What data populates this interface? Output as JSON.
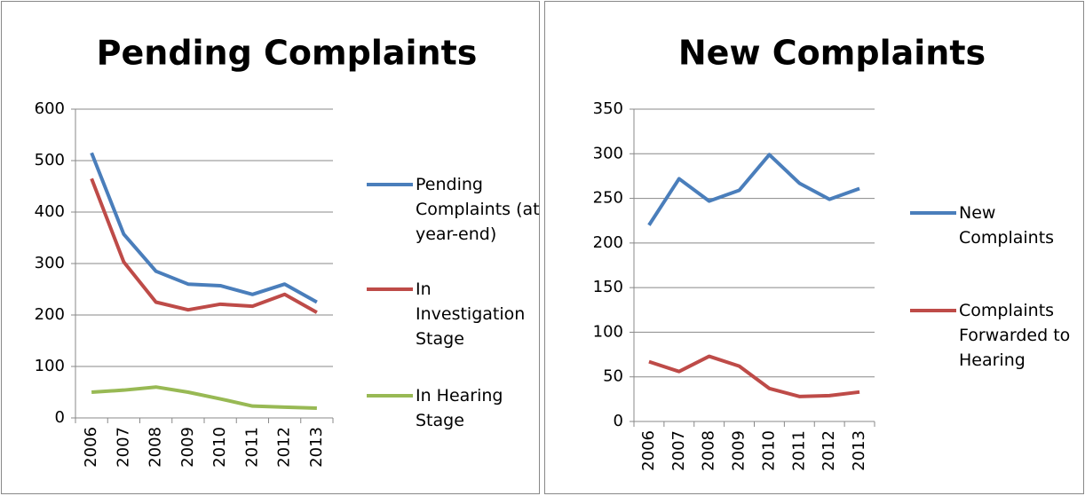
{
  "chart_data": [
    {
      "type": "line",
      "title": "Pending Complaints",
      "categories": [
        "2006",
        "2007",
        "2008",
        "2009",
        "2010",
        "2011",
        "2012",
        "2013"
      ],
      "series": [
        {
          "name": "Pending Complaints (at year-end)",
          "color": "#4a7ebb",
          "values": [
            515,
            357,
            285,
            260,
            257,
            240,
            260,
            225
          ]
        },
        {
          "name": "In Investigation Stage",
          "color": "#be4b48",
          "values": [
            465,
            303,
            225,
            210,
            221,
            217,
            240,
            205
          ]
        },
        {
          "name": "In Hearing Stage",
          "color": "#98b954",
          "values": [
            50,
            54,
            60,
            50,
            37,
            23,
            21,
            19
          ]
        }
      ],
      "ylim": [
        0,
        600
      ],
      "yticks": [
        0,
        100,
        200,
        300,
        400,
        500,
        600
      ],
      "grid": true,
      "legend": "right"
    },
    {
      "type": "line",
      "title": "New Complaints",
      "categories": [
        "2006",
        "2007",
        "2008",
        "2009",
        "2010",
        "2011",
        "2012",
        "2013"
      ],
      "series": [
        {
          "name": "New Complaints",
          "color": "#4a7ebb",
          "values": [
            220,
            272,
            247,
            259,
            299,
            267,
            249,
            261
          ]
        },
        {
          "name": "Complaints Forwarded to Hearing",
          "color": "#be4b48",
          "values": [
            67,
            56,
            73,
            62,
            37,
            28,
            29,
            33
          ]
        }
      ],
      "ylim": [
        0,
        350
      ],
      "yticks": [
        0,
        50,
        100,
        150,
        200,
        250,
        300,
        350
      ],
      "grid": true,
      "legend": "right"
    }
  ]
}
